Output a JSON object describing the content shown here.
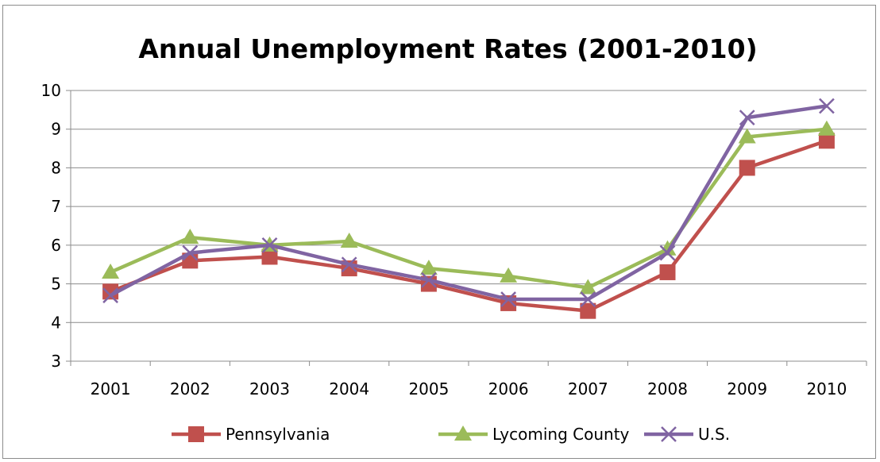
{
  "chart_data": {
    "type": "line",
    "title": "Annual Unemployment Rates (2001-2010)",
    "xlabel": "",
    "ylabel": "",
    "categories": [
      "2001",
      "2002",
      "2003",
      "2004",
      "2005",
      "2006",
      "2007",
      "2008",
      "2009",
      "2010"
    ],
    "ylim": [
      3,
      10
    ],
    "yticks": [
      "3",
      "4",
      "5",
      "6",
      "7",
      "8",
      "9",
      "10"
    ],
    "grid": "horizontal",
    "legend": "bottom",
    "series": [
      {
        "name": "Pennsylvania",
        "color": "#c0504d",
        "marker": "square",
        "values": [
          4.8,
          5.6,
          5.7,
          5.4,
          5.0,
          4.5,
          4.3,
          5.3,
          8.0,
          8.7
        ]
      },
      {
        "name": "Lycoming County",
        "color": "#9bbb59",
        "marker": "triangle",
        "values": [
          5.3,
          6.2,
          6.0,
          6.1,
          5.4,
          5.2,
          4.9,
          5.9,
          8.8,
          9.0
        ]
      },
      {
        "name": "U.S.",
        "color": "#8064a2",
        "marker": "x",
        "values": [
          4.7,
          5.8,
          6.0,
          5.5,
          5.1,
          4.6,
          4.6,
          5.8,
          9.3,
          9.6
        ]
      }
    ]
  }
}
